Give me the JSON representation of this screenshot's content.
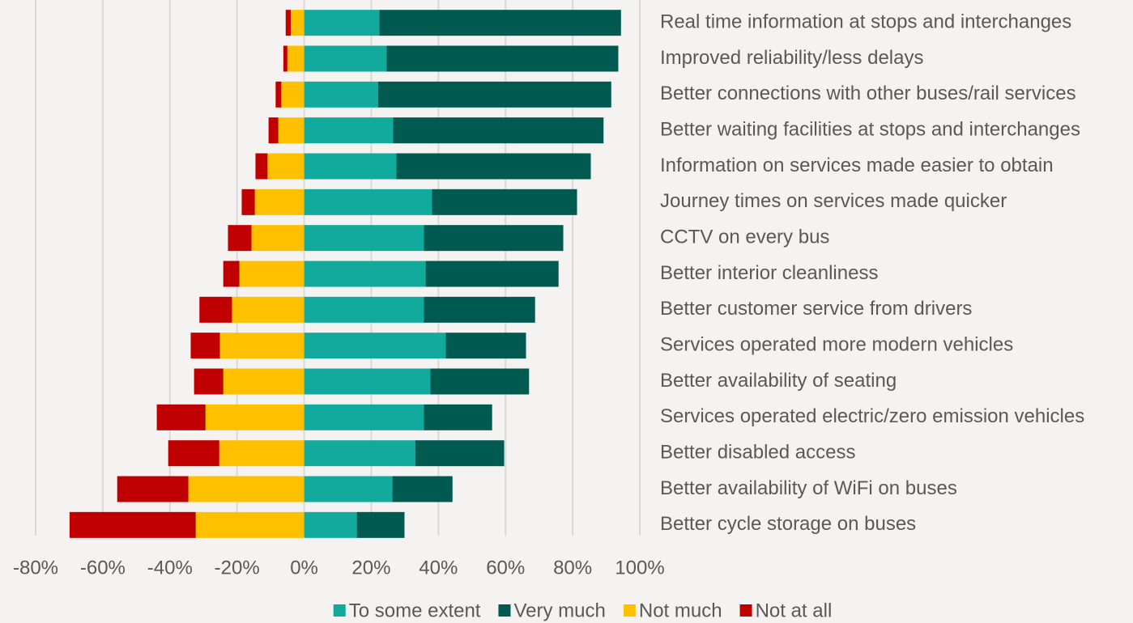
{
  "chart_data": {
    "type": "diverging-stacked-bar",
    "categories": [
      "Real time information at stops and interchanges",
      "Improved reliability/less delays",
      "Better connections with other buses/rail services",
      "Better waiting facilities at stops and interchanges",
      "Information on services made easier to obtain",
      "Journey times on services made quicker",
      "CCTV on every bus",
      "Better interior cleanliness",
      "Better customer service from drivers",
      "Services operated more modern vehicles",
      "Better availability of seating",
      "Services operated electric/zero emission vehicles",
      "Better disabled access",
      "Better availability of WiFi on buses",
      "Better cycle storage on buses"
    ],
    "series": [
      {
        "name": "To some extent",
        "color": "#13aa9e",
        "values": [
          22.4,
          24.6,
          22,
          26.5,
          27.5,
          38.1,
          35.7,
          36.2,
          35.7,
          42.2,
          37.6,
          35.7,
          33.1,
          26.3,
          15.7
        ]
      },
      {
        "name": "Very much",
        "color": "#005a50",
        "values": [
          72,
          69,
          69.5,
          62.7,
          57.9,
          43.2,
          41.5,
          39.6,
          33.1,
          23.9,
          29.4,
          20.3,
          26.5,
          17.9,
          14.2
        ]
      },
      {
        "name": "Not much",
        "color": "#ffc000",
        "values": [
          -4,
          -5,
          -6.8,
          -7.7,
          -10.9,
          -14.7,
          -15.7,
          -19.3,
          -21.5,
          -25.1,
          -24.1,
          -29.4,
          -25.3,
          -34.5,
          -32.3
        ]
      },
      {
        "name": "Not at all",
        "color": "#c00000",
        "values": [
          -1.5,
          -1.2,
          -1.7,
          -2.9,
          -3.6,
          -3.9,
          -7,
          -4.8,
          -9.7,
          -8.7,
          -8.7,
          -14.5,
          -15.2,
          -21.2,
          -37.6
        ]
      }
    ],
    "xlim": [
      -80,
      100
    ],
    "xticks": [
      {
        "value": -80,
        "label": "-80%"
      },
      {
        "value": -60,
        "label": "-60%"
      },
      {
        "value": -40,
        "label": "-40%"
      },
      {
        "value": -20,
        "label": "-20%"
      },
      {
        "value": 0,
        "label": "0%"
      },
      {
        "value": 20,
        "label": "20%"
      },
      {
        "value": 40,
        "label": "40%"
      },
      {
        "value": 60,
        "label": "60%"
      },
      {
        "value": 80,
        "label": "80%"
      },
      {
        "value": 100,
        "label": "100%"
      }
    ],
    "grid": true,
    "legend": "bottom"
  }
}
